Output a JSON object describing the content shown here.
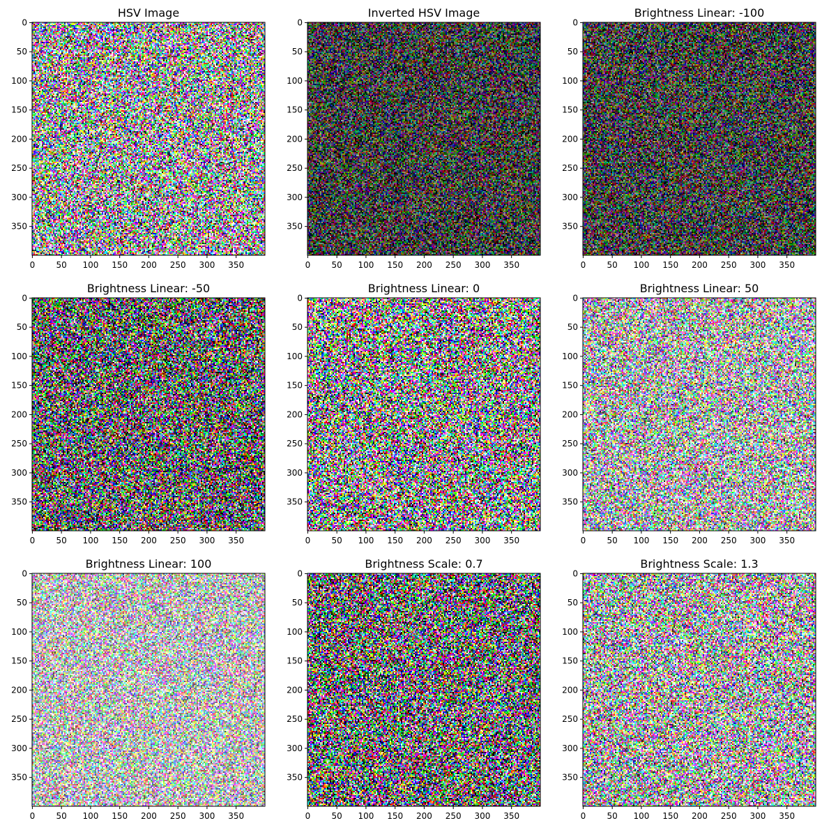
{
  "chart_data": [
    {
      "type": "heatmap",
      "title": "HSV Image",
      "brightness": 0.62,
      "xlim": [
        0,
        399
      ],
      "ylim": [
        399,
        0
      ],
      "xticks": [
        0,
        50,
        100,
        150,
        200,
        250,
        300,
        350
      ],
      "yticks": [
        0,
        50,
        100,
        150,
        200,
        250,
        300,
        350
      ]
    },
    {
      "type": "heatmap",
      "title": "Inverted HSV Image",
      "brightness": 0.24,
      "xlim": [
        0,
        399
      ],
      "ylim": [
        399,
        0
      ],
      "xticks": [
        0,
        50,
        100,
        150,
        200,
        250,
        300,
        350
      ],
      "yticks": [
        0,
        50,
        100,
        150,
        200,
        250,
        300,
        350
      ]
    },
    {
      "type": "heatmap",
      "title": "Brightness Linear: -100",
      "brightness": 0.25,
      "xlim": [
        0,
        399
      ],
      "ylim": [
        399,
        0
      ],
      "xticks": [
        0,
        50,
        100,
        150,
        200,
        250,
        300,
        350
      ],
      "yticks": [
        0,
        50,
        100,
        150,
        200,
        250,
        300,
        350
      ]
    },
    {
      "type": "heatmap",
      "title": "Brightness Linear: -50",
      "brightness": 0.38,
      "xlim": [
        0,
        399
      ],
      "ylim": [
        399,
        0
      ],
      "xticks": [
        0,
        50,
        100,
        150,
        200,
        250,
        300,
        350
      ],
      "yticks": [
        0,
        50,
        100,
        150,
        200,
        250,
        300,
        350
      ]
    },
    {
      "type": "heatmap",
      "title": "Brightness Linear: 0",
      "brightness": 0.56,
      "xlim": [
        0,
        399
      ],
      "ylim": [
        399,
        0
      ],
      "xticks": [
        0,
        50,
        100,
        150,
        200,
        250,
        300,
        350
      ],
      "yticks": [
        0,
        50,
        100,
        150,
        200,
        250,
        300,
        350
      ]
    },
    {
      "type": "heatmap",
      "title": "Brightness Linear: 50",
      "brightness": 0.68,
      "xlim": [
        0,
        399
      ],
      "ylim": [
        399,
        0
      ],
      "xticks": [
        0,
        50,
        100,
        150,
        200,
        250,
        300,
        350
      ],
      "yticks": [
        0,
        50,
        100,
        150,
        200,
        250,
        300,
        350
      ]
    },
    {
      "type": "heatmap",
      "title": "Brightness Linear: 100",
      "brightness": 0.74,
      "xlim": [
        0,
        399
      ],
      "ylim": [
        399,
        0
      ],
      "xticks": [
        0,
        50,
        100,
        150,
        200,
        250,
        300,
        350
      ],
      "yticks": [
        0,
        50,
        100,
        150,
        200,
        250,
        300,
        350
      ]
    },
    {
      "type": "heatmap",
      "title": "Brightness Scale: 0.7",
      "brightness": 0.42,
      "xlim": [
        0,
        399
      ],
      "ylim": [
        399,
        0
      ],
      "xticks": [
        0,
        50,
        100,
        150,
        200,
        250,
        300,
        350
      ],
      "yticks": [
        0,
        50,
        100,
        150,
        200,
        250,
        300,
        350
      ]
    },
    {
      "type": "heatmap",
      "title": "Brightness Scale: 1.3",
      "brightness": 0.66,
      "xlim": [
        0,
        399
      ],
      "ylim": [
        399,
        0
      ],
      "xticks": [
        0,
        50,
        100,
        150,
        200,
        250,
        300,
        350
      ],
      "yticks": [
        0,
        50,
        100,
        150,
        200,
        250,
        300,
        350
      ]
    }
  ]
}
